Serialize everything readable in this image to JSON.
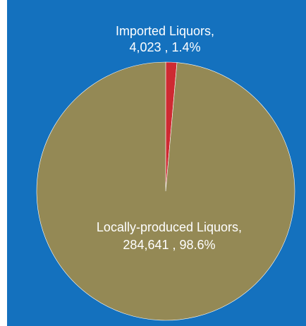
{
  "chart_data": {
    "type": "pie",
    "title": "",
    "slices": [
      {
        "label": "Imported Liquors",
        "value": 4023,
        "value_text": "4,023",
        "percent": 1.4,
        "percent_text": "1.4%",
        "color": "#CE2A32"
      },
      {
        "label": "Locally-produced Liquors",
        "value": 284641,
        "value_text": "284,641",
        "percent": 98.6,
        "percent_text": "98.6%",
        "color": "#948955"
      }
    ],
    "start_angle": "top, clockwise",
    "legend": "none",
    "label_placement": "on slice"
  },
  "colors": {
    "background": "#1471BE",
    "label_text": "#FFFFFF"
  }
}
